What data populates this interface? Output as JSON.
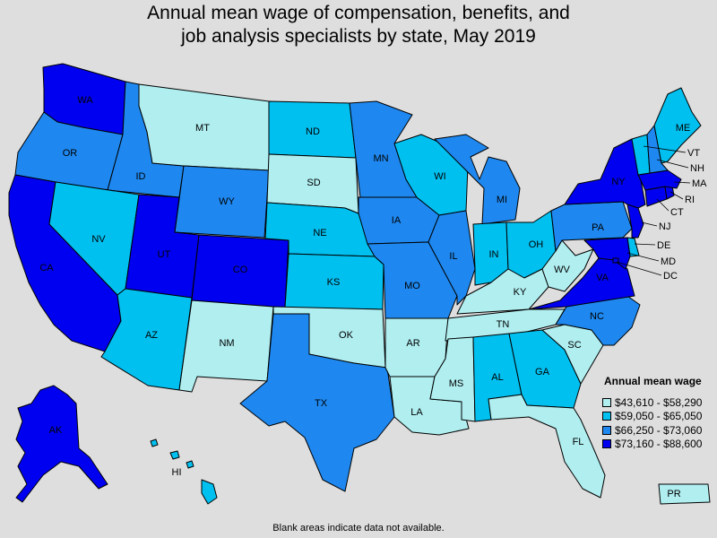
{
  "title_line1": "Annual mean wage of compensation, benefits, and",
  "title_line2": "job analysis specialists by state, May 2019",
  "legend": {
    "title": "Annual mean wage",
    "classes": [
      {
        "label": "$43,610 - $58,290",
        "color": "#b0eef0"
      },
      {
        "label": "$59,050 - $65,050",
        "color": "#00c0f0"
      },
      {
        "label": "$66,250 - $73,060",
        "color": "#1e88f0"
      },
      {
        "label": "$73,160 - $88,600",
        "color": "#0000f0"
      }
    ]
  },
  "footnote": "Blank areas indicate data not available.",
  "states": [
    {
      "code": "WA",
      "class": 3
    },
    {
      "code": "OR",
      "class": 2
    },
    {
      "code": "CA",
      "class": 3
    },
    {
      "code": "ID",
      "class": 2
    },
    {
      "code": "NV",
      "class": 1
    },
    {
      "code": "MT",
      "class": 0
    },
    {
      "code": "WY",
      "class": 2
    },
    {
      "code": "UT",
      "class": 3
    },
    {
      "code": "AZ",
      "class": 1
    },
    {
      "code": "CO",
      "class": 3
    },
    {
      "code": "NM",
      "class": 0
    },
    {
      "code": "ND",
      "class": 1
    },
    {
      "code": "SD",
      "class": 0
    },
    {
      "code": "NE",
      "class": 1
    },
    {
      "code": "KS",
      "class": 1
    },
    {
      "code": "OK",
      "class": 0
    },
    {
      "code": "TX",
      "class": 2
    },
    {
      "code": "MN",
      "class": 2
    },
    {
      "code": "IA",
      "class": 2
    },
    {
      "code": "MO",
      "class": 2
    },
    {
      "code": "AR",
      "class": 0
    },
    {
      "code": "LA",
      "class": 0
    },
    {
      "code": "WI",
      "class": 1
    },
    {
      "code": "IL",
      "class": 2
    },
    {
      "code": "MI",
      "class": 2
    },
    {
      "code": "IN",
      "class": 1
    },
    {
      "code": "OH",
      "class": 1
    },
    {
      "code": "KY",
      "class": 0
    },
    {
      "code": "TN",
      "class": 0
    },
    {
      "code": "MS",
      "class": 0
    },
    {
      "code": "AL",
      "class": 1
    },
    {
      "code": "GA",
      "class": 1
    },
    {
      "code": "FL",
      "class": 0
    },
    {
      "code": "SC",
      "class": 0
    },
    {
      "code": "NC",
      "class": 2
    },
    {
      "code": "VA",
      "class": 3
    },
    {
      "code": "WV",
      "class": 0
    },
    {
      "code": "PA",
      "class": 2
    },
    {
      "code": "NY",
      "class": 3
    },
    {
      "code": "VT",
      "class": 1
    },
    {
      "code": "NH",
      "class": 2
    },
    {
      "code": "ME",
      "class": 1
    },
    {
      "code": "MA",
      "class": 3
    },
    {
      "code": "RI",
      "class": 3
    },
    {
      "code": "CT",
      "class": 3
    },
    {
      "code": "NJ",
      "class": 3
    },
    {
      "code": "DE",
      "class": 1
    },
    {
      "code": "MD",
      "class": 3
    },
    {
      "code": "DC",
      "class": 3
    },
    {
      "code": "AK",
      "class": 3
    },
    {
      "code": "HI",
      "class": 1
    },
    {
      "code": "PR",
      "class": 0
    }
  ]
}
